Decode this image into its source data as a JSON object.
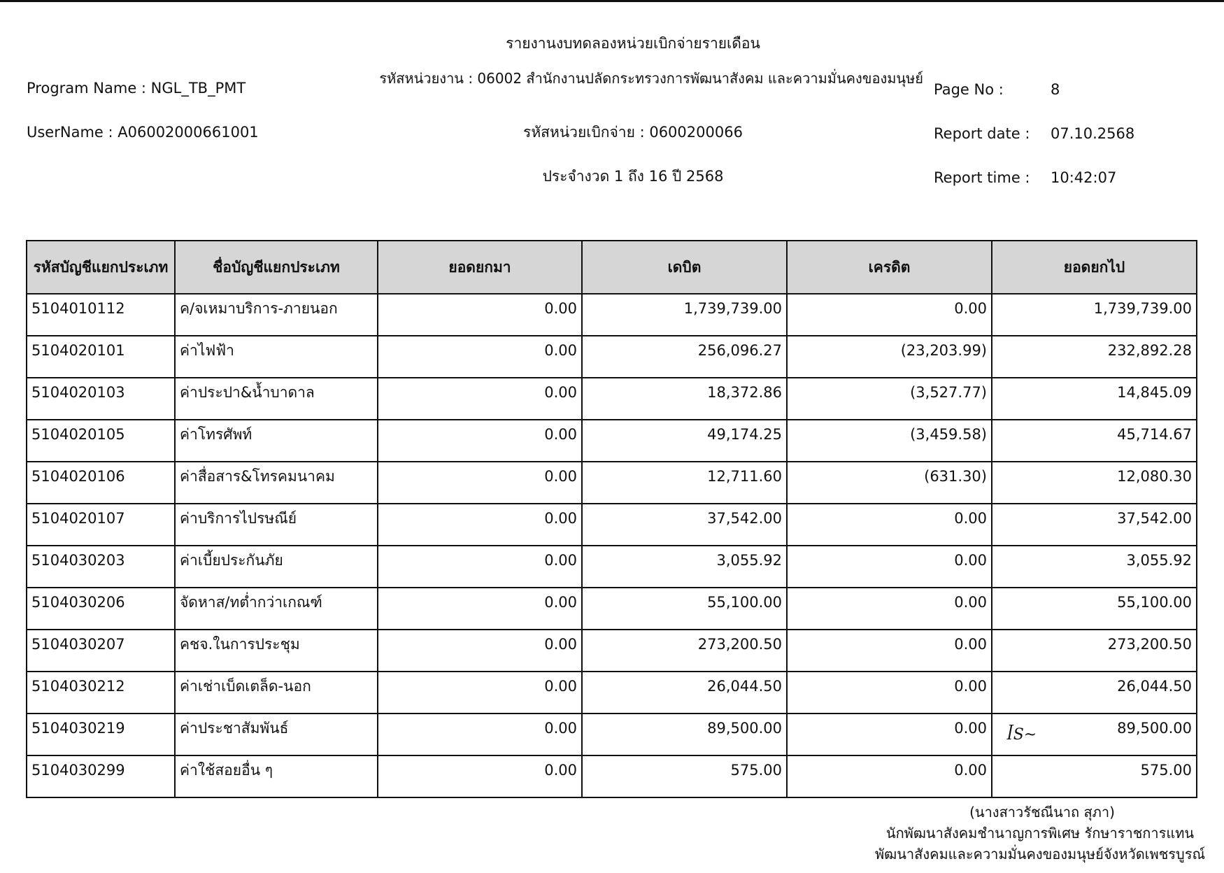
{
  "title": "รายงานงบทดลองหน่วยเบิกจ่ายรายเดือน",
  "program_name": "Program Name : NGL_TB_PMT",
  "username": "UserName : A06002000661001",
  "agency": "รหัสหน่วยงาน : 06002 สำนักงานปลัดกระทรวงการพัฒนาสังคม และความมั่นคงของมนุษย์",
  "disbursing_unit": "รหัสหน่วยเบิกจ่าย : 0600200066",
  "period": "ประจำงวด 1 ถึง 16 ปี 2568",
  "page_no_label": "Page No :",
  "page_no": "8",
  "report_date_label": "Report date :",
  "report_date": "07.10.2568",
  "report_time_label": "Report time :",
  "report_time": "10:42:07",
  "columns": [
    "รหัสบัญชีแยกประเภท",
    "ชื่อบัญชีแยกประเภท",
    "ยอดยกมา",
    "เดบิต",
    "เครดิต",
    "ยอดยกไป"
  ],
  "rows": [
    [
      "5104010112",
      "ค/จเหมาบริการ-ภายนอก",
      "0.00",
      "1,739,739.00",
      "0.00",
      "1,739,739.00"
    ],
    [
      "5104020101",
      "ค่าไฟฟ้า",
      "0.00",
      "256,096.27",
      "(23,203.99)",
      "232,892.28"
    ],
    [
      "5104020103",
      "ค่าประปา&น้ำบาดาล",
      "0.00",
      "18,372.86",
      "(3,527.77)",
      "14,845.09"
    ],
    [
      "5104020105",
      "ค่าโทรศัพท์",
      "0.00",
      "49,174.25",
      "(3,459.58)",
      "45,714.67"
    ],
    [
      "5104020106",
      "ค่าสื่อสาร&โทรคมนาคม",
      "0.00",
      "12,711.60",
      "(631.30)",
      "12,080.30"
    ],
    [
      "5104020107",
      "ค่าบริการไปรษณีย์",
      "0.00",
      "37,542.00",
      "0.00",
      "37,542.00"
    ],
    [
      "5104030203",
      "ค่าเบี้ยประกันภัย",
      "0.00",
      "3,055.92",
      "0.00",
      "3,055.92"
    ],
    [
      "5104030206",
      "จัดหาส/ทต่ำกว่าเกณฑ์",
      "0.00",
      "55,100.00",
      "0.00",
      "55,100.00"
    ],
    [
      "5104030207",
      "คชจ.ในการประชุม",
      "0.00",
      "273,200.50",
      "0.00",
      "273,200.50"
    ],
    [
      "5104030212",
      "ค่าเช่าเบ็ดเตล็ด-นอก",
      "0.00",
      "26,044.50",
      "0.00",
      "26,044.50"
    ],
    [
      "5104030219",
      "ค่าประชาสัมพันธ์",
      "0.00",
      "89,500.00",
      "0.00",
      "89,500.00"
    ],
    [
      "5104030299",
      "ค่าใช้สอยอื่น ๆ",
      "0.00",
      "575.00",
      "0.00",
      "575.00"
    ]
  ],
  "signature": {
    "name": "(นางสาวรัชณีนาถ  สุภา)",
    "position1": "นักพัฒนาสังคมชำนาญการพิเศษ รักษาราชการแทน",
    "position2": "พัฒนาสังคมและความมั่นคงของมนุษย์จังหวัดเพชรบูรณ์"
  }
}
